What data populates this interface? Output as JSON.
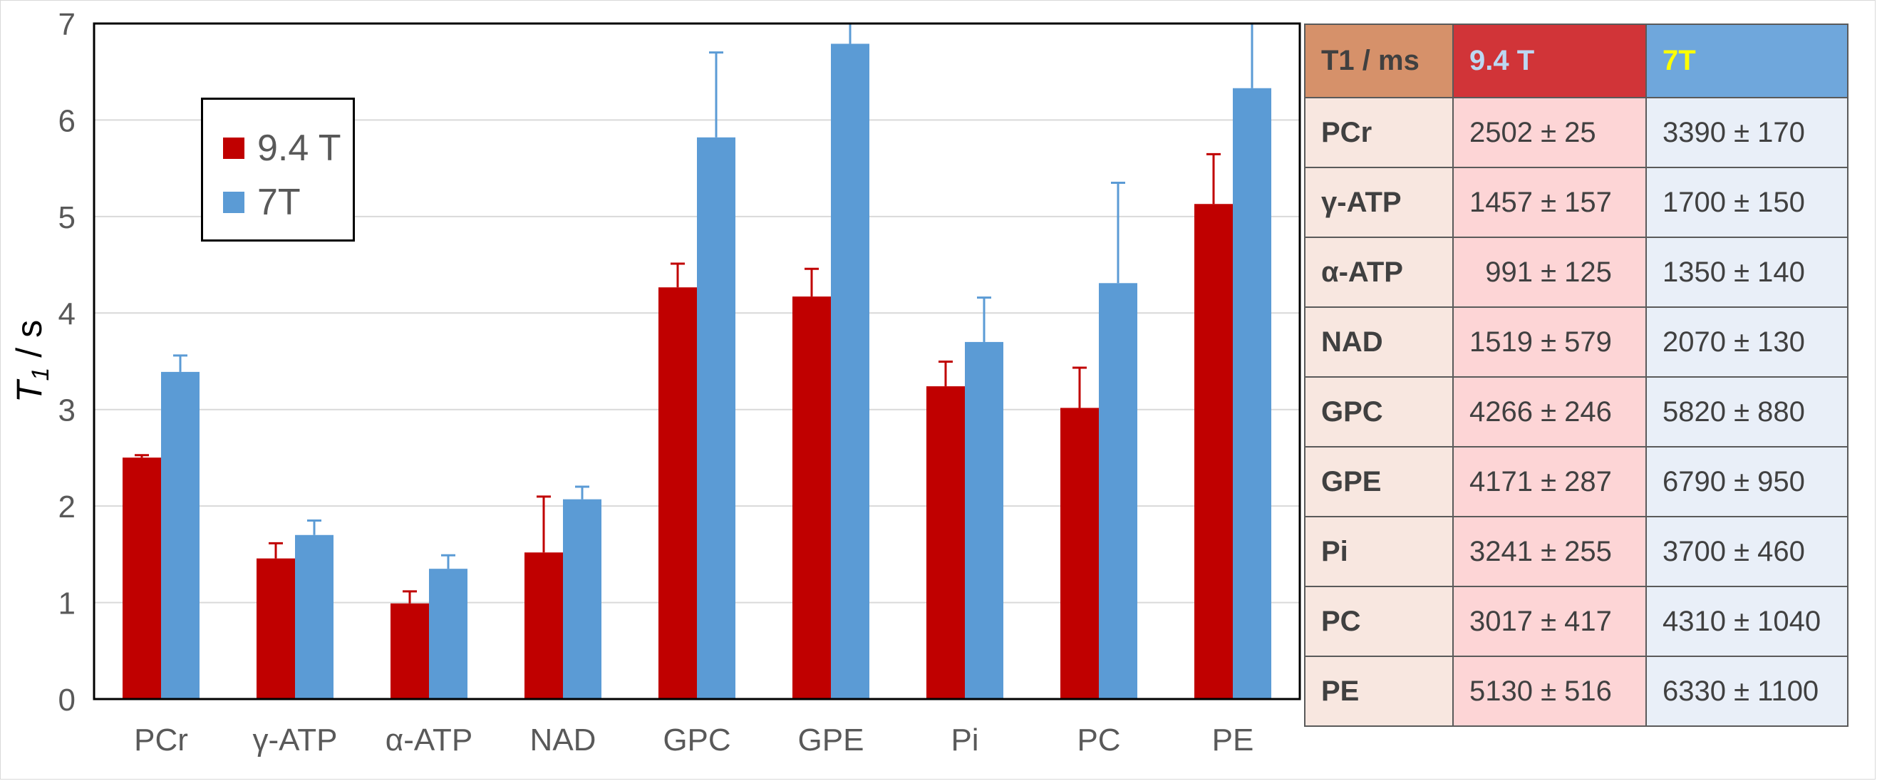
{
  "chart_data": {
    "type": "bar",
    "ylabel": "T1 / s",
    "ylim": [
      0,
      7
    ],
    "yticks": [
      0,
      1,
      2,
      3,
      4,
      5,
      6,
      7
    ],
    "grid": true,
    "legend_position": "top-left",
    "categories": [
      "PCr",
      "γ-ATP",
      "α-ATP",
      "NAD",
      "GPC",
      "GPE",
      "Pi",
      "PC",
      "PE"
    ],
    "series": [
      {
        "name": "9.4 T",
        "color": "#c00000",
        "values": [
          2.502,
          1.457,
          0.991,
          1.519,
          4.266,
          4.171,
          3.241,
          3.017,
          5.13
        ],
        "errors": [
          0.025,
          0.157,
          0.125,
          0.579,
          0.246,
          0.287,
          0.255,
          0.417,
          0.516
        ]
      },
      {
        "name": "7T",
        "color": "#5b9bd5",
        "values": [
          3.39,
          1.7,
          1.35,
          2.07,
          5.82,
          6.79,
          3.7,
          4.31,
          6.33
        ],
        "errors": [
          0.17,
          0.15,
          0.14,
          0.13,
          0.88,
          0.95,
          0.46,
          1.04,
          1.1
        ]
      }
    ]
  },
  "table": {
    "header": [
      "T1 / ms",
      "9.4 T",
      "7T"
    ],
    "header_colors": {
      "bg": [
        "#d6916a",
        "#d13438",
        "#6fa7dc"
      ],
      "fg": [
        "#404040",
        "#bcd8f2",
        "#ffff00"
      ]
    },
    "column_bg": [
      "#f8e7e0",
      "#fdd5d6",
      "#e9eff8"
    ],
    "rows": [
      [
        "PCr",
        "2502 ± 25",
        "3390 ± 170"
      ],
      [
        "γ-ATP",
        "1457 ± 157",
        "1700 ± 150"
      ],
      [
        "α-ATP",
        "  991 ± 125",
        "1350 ± 140"
      ],
      [
        "NAD",
        "1519 ± 579",
        "2070 ± 130"
      ],
      [
        "GPC",
        "4266 ± 246",
        "5820 ± 880"
      ],
      [
        "GPE",
        "4171 ± 287",
        "6790 ± 950"
      ],
      [
        "Pi",
        "3241 ± 255",
        "3700 ± 460"
      ],
      [
        "PC",
        "3017 ± 417",
        "4310 ± 1040"
      ],
      [
        "PE",
        "5130 ± 516",
        "6330 ± 1100"
      ]
    ]
  }
}
